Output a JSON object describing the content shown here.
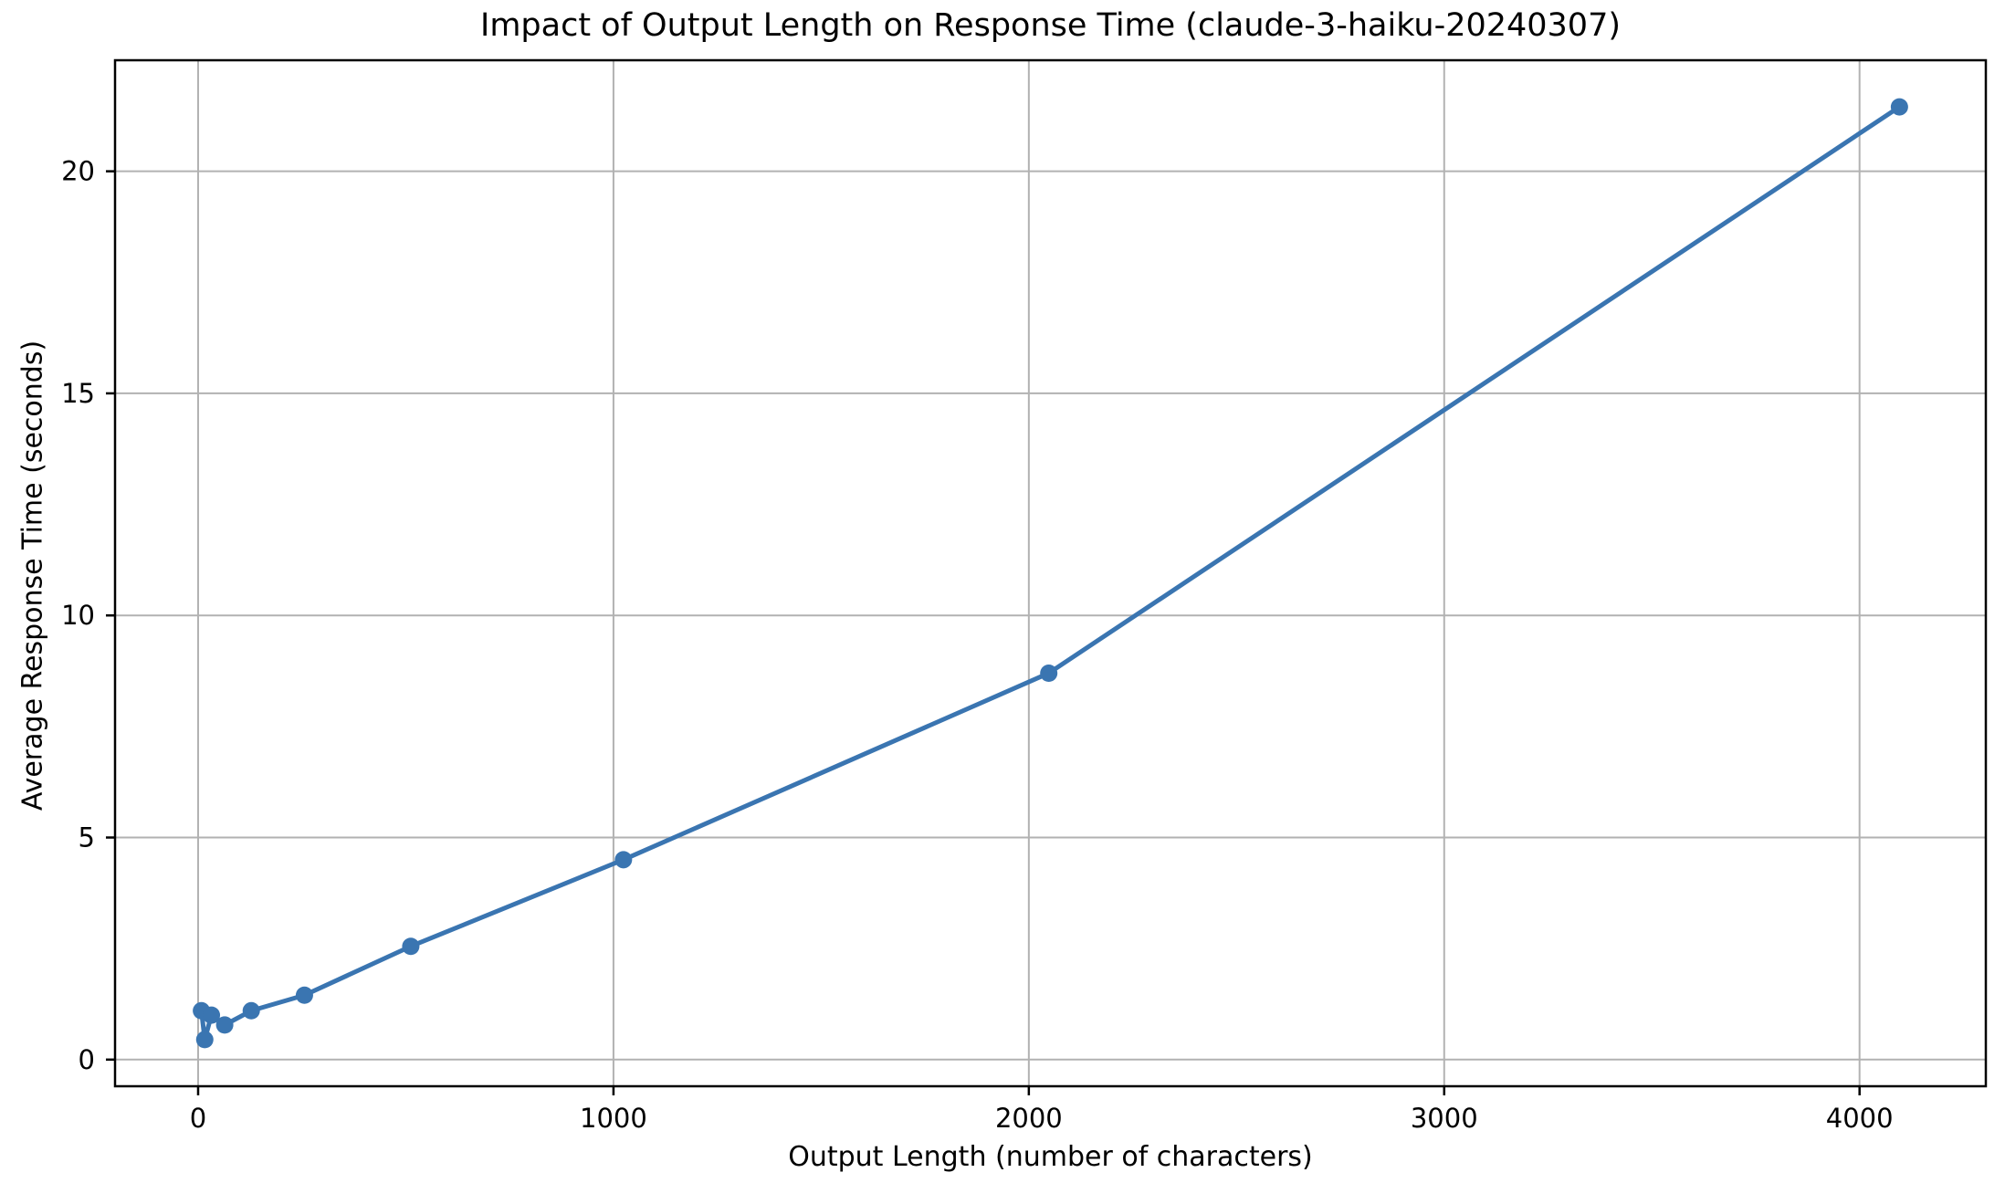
{
  "chart_data": {
    "type": "line",
    "title": "Impact of Output Length on Response Time (claude-3-haiku-20240307)",
    "xlabel": "Output Length (number of characters)",
    "ylabel": "Average Response Time (seconds)",
    "x": [
      8,
      16,
      32,
      64,
      128,
      256,
      512,
      1024,
      2048,
      4096
    ],
    "y": [
      1.1,
      0.45,
      1.0,
      0.78,
      1.1,
      1.45,
      2.55,
      4.5,
      8.7,
      21.45
    ],
    "xlim": [
      -200,
      4304
    ],
    "ylim": [
      -0.6,
      22.5
    ],
    "xticks": [
      0,
      1000,
      2000,
      3000,
      4000
    ],
    "yticks": [
      0,
      5,
      10,
      15,
      20
    ],
    "xtick_labels": [
      "0",
      "1000",
      "2000",
      "3000",
      "4000"
    ],
    "ytick_labels": [
      "0",
      "5",
      "10",
      "15",
      "20"
    ],
    "grid": true,
    "legend": null,
    "line_color": "#3a75b1",
    "marker_color": "#3a75b1",
    "grid_color": "#b2b2b2",
    "spine_color": "#000000",
    "tick_color": "#000000",
    "background_color": "#ffffff"
  }
}
